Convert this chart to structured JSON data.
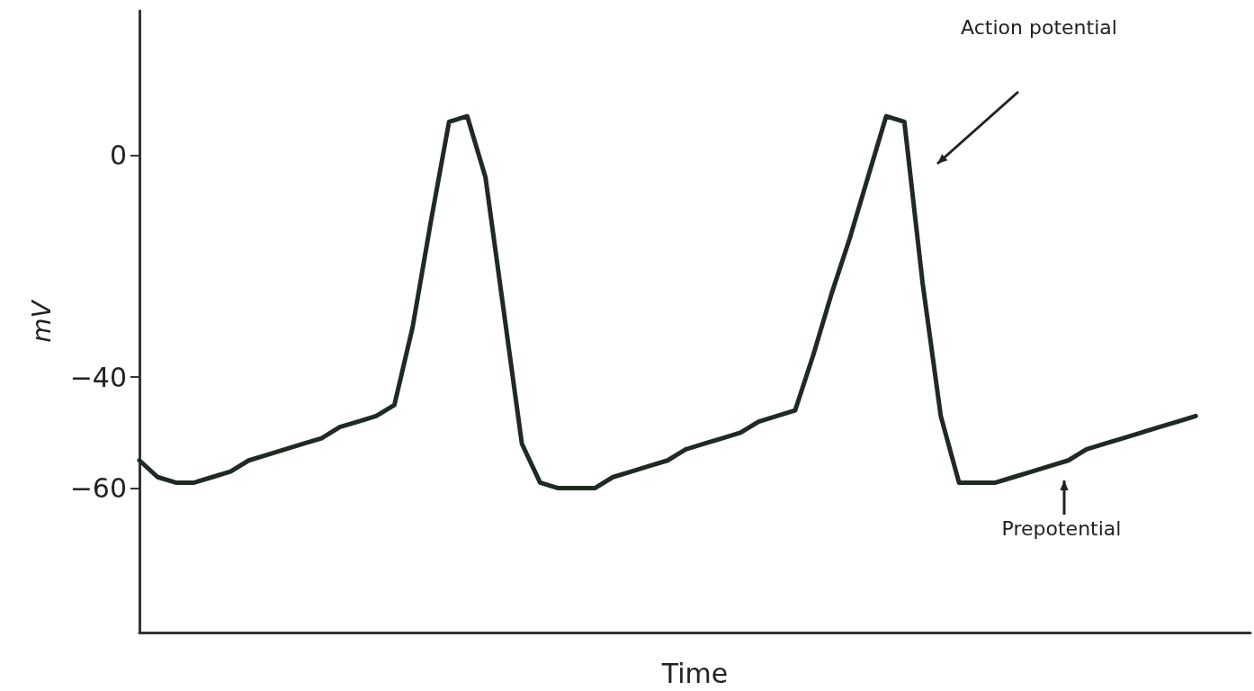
{
  "chart_data": {
    "type": "line",
    "xlabel": "Time",
    "ylabel": "mV",
    "categories": [
      null,
      null,
      null,
      null,
      null,
      null,
      null,
      null,
      null,
      null,
      null,
      null,
      null,
      null,
      null,
      null,
      null,
      null,
      null,
      null,
      null,
      null,
      null,
      null,
      null,
      null,
      null,
      null,
      null,
      null,
      null,
      null,
      null,
      null,
      null,
      null,
      null,
      null,
      null,
      null,
      null,
      null,
      null,
      null,
      null,
      null,
      null,
      null,
      null,
      null,
      null,
      null,
      null,
      null,
      null,
      null,
      null,
      null,
      null,
      null,
      null,
      null
    ],
    "series": [
      {
        "color": "#1e2a22",
        "values": [
          -55,
          -58,
          -59,
          -59,
          -58,
          -57,
          -55,
          -54,
          -53,
          -52,
          -51,
          -49,
          -48,
          -47,
          -45,
          -31,
          -12,
          6,
          7,
          -4,
          -28,
          -52,
          -59,
          -60,
          -60,
          -60,
          -58,
          -57,
          -56,
          -55,
          -53,
          -52,
          -51,
          -50,
          -48,
          -47,
          -46,
          -36,
          -25,
          -15,
          -4,
          7,
          6,
          -23,
          -47,
          -59,
          -59,
          -59,
          -58,
          -57,
          -56,
          -55,
          -53,
          -52,
          -51,
          -50,
          -49,
          -48,
          -47,
          null,
          null,
          null
        ]
      }
    ],
    "ylim": [
      -86,
      26
    ],
    "yticks": [
      -60,
      -40,
      0
    ],
    "tick_labels": "y",
    "marker": "none",
    "line_style": "solid",
    "annotations": [
      "Action potential",
      "Prepotential"
    ]
  }
}
